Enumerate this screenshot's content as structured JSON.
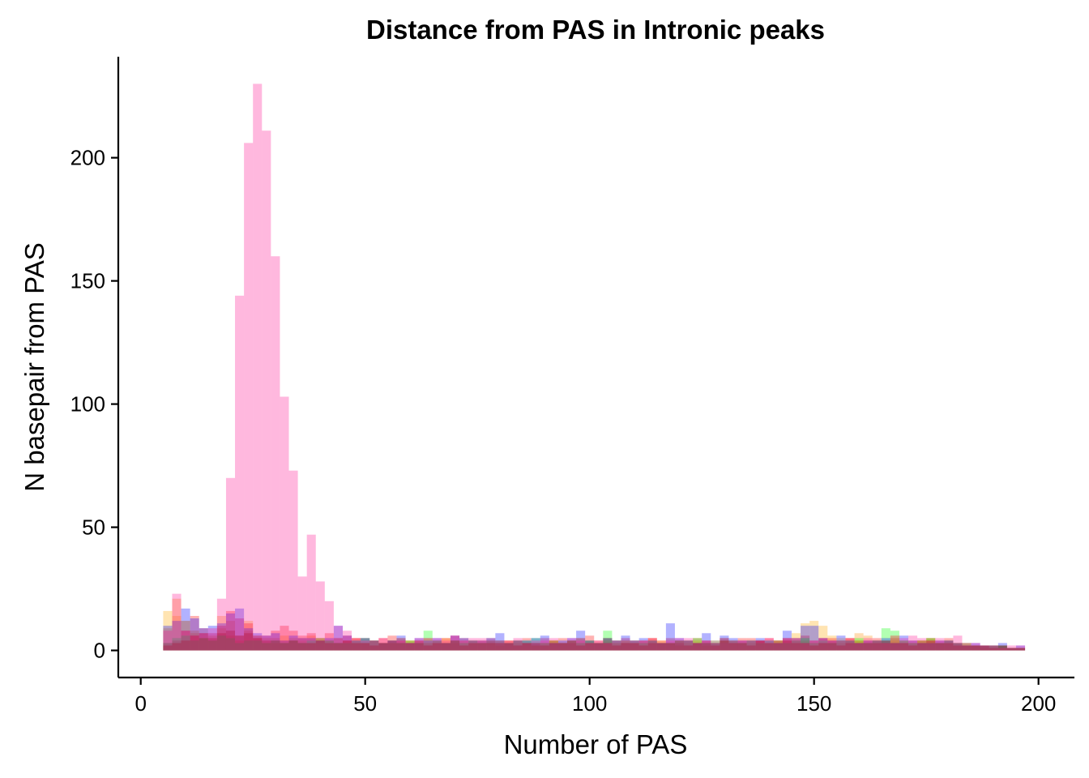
{
  "chart_data": {
    "type": "bar",
    "subtype": "overlaid-histogram",
    "title": "Distance from PAS in Intronic peaks",
    "xlabel": "Number of PAS",
    "ylabel": "N basepair from PAS",
    "xlim": [
      -5,
      208
    ],
    "ylim": [
      -11,
      241
    ],
    "x_ticks": [
      0,
      50,
      100,
      150,
      200
    ],
    "y_ticks": [
      0,
      50,
      100,
      150,
      200
    ],
    "grid": false,
    "legend": "none",
    "bin_width": 2,
    "bin_start": 5,
    "bar_opacity": 0.3,
    "series": [
      {
        "color": "#ffa500",
        "values": [
          16,
          14,
          12,
          8,
          5,
          4,
          9,
          6,
          4,
          12,
          6,
          3,
          3,
          6,
          5,
          4,
          3,
          5,
          4,
          5,
          4,
          3,
          3,
          4,
          3,
          3,
          5,
          4,
          4,
          3,
          3,
          5,
          4,
          3,
          3,
          4,
          3,
          2,
          3,
          4,
          3,
          2,
          3,
          4,
          3,
          4,
          5,
          3,
          3,
          4,
          3,
          4,
          3,
          4,
          5,
          4,
          3,
          4,
          3,
          4,
          2,
          3,
          4,
          4,
          3,
          4,
          4,
          3,
          4,
          5,
          7,
          11,
          12,
          10,
          6,
          5,
          4,
          4,
          3,
          4,
          3,
          6,
          4,
          3,
          4,
          4,
          3,
          3,
          3,
          2,
          2,
          1,
          2,
          1,
          1,
          1
        ]
      },
      {
        "color": "#ff8c00",
        "values": [
          9,
          21,
          12,
          7,
          5,
          6,
          14,
          12,
          6,
          8,
          5,
          5,
          5,
          4,
          4,
          5,
          6,
          4,
          4,
          3,
          4,
          5,
          3,
          4,
          3,
          3,
          4,
          3,
          4,
          3,
          4,
          3,
          3,
          4,
          4,
          3,
          3,
          3,
          4,
          3,
          3,
          2,
          3,
          4,
          3,
          4,
          3,
          4,
          3,
          5,
          3,
          4,
          3,
          3,
          4,
          3,
          3,
          2,
          4,
          3,
          4,
          3,
          5,
          3,
          4,
          3,
          4,
          3,
          4,
          4,
          5,
          4,
          3,
          3,
          4,
          3,
          5,
          7,
          6,
          4,
          3,
          4,
          4,
          3,
          4,
          5,
          3,
          4,
          3,
          2,
          2,
          2,
          2,
          2,
          1,
          1
        ]
      },
      {
        "color": "#ff0000",
        "values": [
          3,
          4,
          8,
          14,
          9,
          7,
          10,
          16,
          13,
          11,
          6,
          6,
          8,
          10,
          8,
          6,
          7,
          5,
          7,
          5,
          6,
          5,
          5,
          4,
          5,
          6,
          5,
          4,
          4,
          5,
          4,
          5,
          6,
          5,
          4,
          4,
          5,
          4,
          4,
          4,
          5,
          3,
          5,
          4,
          5,
          3,
          5,
          6,
          4,
          5,
          4,
          5,
          4,
          4,
          5,
          4,
          5,
          3,
          4,
          5,
          4,
          3,
          5,
          4,
          5,
          5,
          4,
          5,
          4,
          5,
          4,
          6,
          4,
          5,
          5,
          4,
          5,
          4,
          4,
          5,
          4,
          5,
          3,
          4,
          4,
          5,
          4,
          5,
          3,
          3,
          2,
          2,
          2,
          2,
          1,
          1
        ]
      },
      {
        "color": "#00ff00",
        "values": [
          3,
          5,
          6,
          4,
          5,
          4,
          6,
          5,
          3,
          4,
          4,
          3,
          4,
          3,
          4,
          3,
          4,
          5,
          4,
          3,
          3,
          4,
          5,
          4,
          3,
          4,
          3,
          4,
          3,
          8,
          4,
          3,
          4,
          3,
          4,
          3,
          3,
          4,
          3,
          4,
          4,
          5,
          3,
          4,
          3,
          4,
          3,
          4,
          3,
          8,
          4,
          3,
          4,
          3,
          4,
          3,
          3,
          4,
          4,
          5,
          3,
          4,
          3,
          4,
          3,
          4,
          3,
          4,
          4,
          3,
          4,
          5,
          3,
          4,
          3,
          4,
          4,
          5,
          3,
          4,
          9,
          8,
          4,
          3,
          4,
          5,
          3,
          4,
          3,
          3,
          2,
          2,
          2,
          2,
          1,
          1
        ]
      },
      {
        "color": "#0000ff",
        "values": [
          10,
          12,
          17,
          13,
          9,
          10,
          11,
          15,
          17,
          9,
          7,
          6,
          7,
          4,
          6,
          5,
          5,
          4,
          5,
          10,
          6,
          4,
          5,
          4,
          3,
          4,
          6,
          3,
          5,
          4,
          5,
          3,
          6,
          5,
          4,
          4,
          5,
          7,
          3,
          4,
          4,
          5,
          6,
          3,
          4,
          5,
          8,
          4,
          3,
          5,
          4,
          6,
          4,
          5,
          4,
          3,
          11,
          5,
          4,
          3,
          7,
          3,
          6,
          5,
          4,
          4,
          5,
          4,
          3,
          8,
          5,
          10,
          10,
          5,
          4,
          6,
          4,
          3,
          4,
          4,
          5,
          3,
          6,
          4,
          3,
          3,
          4,
          4,
          3,
          2,
          3,
          2,
          2,
          3,
          1,
          2
        ]
      },
      {
        "color": "#8b0000",
        "values": [
          2,
          3,
          4,
          6,
          7,
          5,
          7,
          8,
          6,
          7,
          5,
          4,
          4,
          3,
          4,
          3,
          3,
          4,
          3,
          3,
          4,
          3,
          3,
          2,
          3,
          4,
          3,
          3,
          3,
          2,
          3,
          3,
          4,
          2,
          3,
          3,
          4,
          3,
          3,
          2,
          3,
          3,
          2,
          3,
          3,
          4,
          2,
          3,
          3,
          3,
          2,
          3,
          3,
          2,
          3,
          3,
          3,
          4,
          2,
          3,
          3,
          2,
          4,
          3,
          3,
          2,
          4,
          3,
          3,
          4,
          3,
          3,
          2,
          3,
          3,
          2,
          3,
          3,
          3,
          3,
          4,
          3,
          3,
          2,
          3,
          4,
          3,
          3,
          2,
          2,
          2,
          2,
          1,
          2,
          1,
          1
        ]
      },
      {
        "color": "#ff1493",
        "values": [
          8,
          23,
          8,
          6,
          7,
          9,
          21,
          70,
          144,
          206,
          230,
          211,
          160,
          103,
          73,
          30,
          47,
          28,
          20,
          10,
          8,
          5,
          4,
          4,
          5,
          4,
          4,
          3,
          5,
          5,
          5,
          4,
          6,
          4,
          5,
          5,
          3,
          4,
          4,
          5,
          3,
          4,
          4,
          5,
          3,
          5,
          4,
          3,
          4,
          3,
          4,
          3,
          4,
          4,
          5,
          3,
          4,
          5,
          5,
          3,
          4,
          4,
          3,
          4,
          4,
          4,
          4,
          5,
          4,
          5,
          5,
          3,
          4,
          5,
          4,
          4,
          5,
          3,
          5,
          4,
          3,
          6,
          5,
          6,
          5,
          4,
          5,
          4,
          6,
          3,
          3,
          2,
          2,
          1,
          2,
          2
        ]
      }
    ]
  }
}
